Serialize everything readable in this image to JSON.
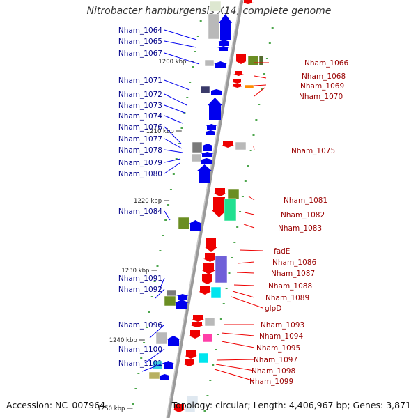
{
  "title": "Nitrobacter hamburgensis X14, complete genome",
  "footer": {
    "accession": "Accession: NC_007964",
    "summary": "Topology: circular; Length: 4,406,967 bp; Genes: 3,871"
  },
  "colors": {
    "left_strand": "#0000ee",
    "right_strand": "#ee0000",
    "axis": "#888888",
    "tick_dots": "#118811"
  },
  "scale_labels": [
    "1200 kbp",
    "1210 kbp",
    "1220 kbp",
    "1230 kbp",
    "1240 kbp",
    "1250 kbp"
  ],
  "left_labels": [
    "Nham_1064",
    "Nham_1065",
    "Nham_1067",
    "Nham_1071",
    "Nham_1072",
    "Nham_1073",
    "Nham_1074",
    "Nham_1076",
    "Nham_1077",
    "Nham_1078",
    "Nham_1079",
    "Nham_1080",
    "Nham_1084",
    "Nham_1091",
    "Nham_1092",
    "Nham_1096",
    "Nham_1100",
    "Nham_1101"
  ],
  "right_labels": [
    "Nham_1066",
    "Nham_1068",
    "Nham_1069",
    "Nham_1070",
    "Nham_1075",
    "Nham_1081",
    "Nham_1082",
    "Nham_1083",
    "fadE",
    "Nham_1086",
    "Nham_1087",
    "Nham_1088",
    "Nham_1089",
    "glpD",
    "Nham_1093",
    "Nham_1094",
    "Nham_1095",
    "Nham_1097",
    "Nham_1098",
    "Nham_1099"
  ]
}
